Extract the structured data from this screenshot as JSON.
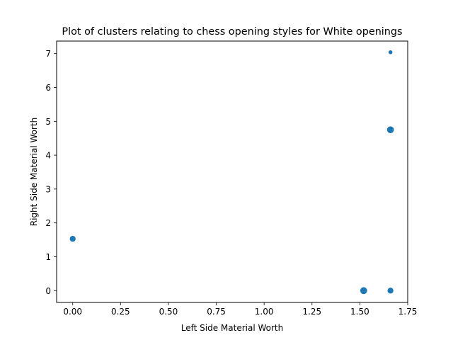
{
  "chart_data": {
    "type": "scatter",
    "title": "Plot of clusters relating to chess opening styles for White openings",
    "xlabel": "Left Side Material Worth",
    "ylabel": "Right Side Material Worth",
    "xlim": [
      -0.084,
      1.75
    ],
    "ylim": [
      -0.35,
      7.37
    ],
    "grid": false,
    "legend": "none",
    "color": "#1f77b4",
    "xticks": [
      {
        "value": 0.0,
        "label": "0.00"
      },
      {
        "value": 0.25,
        "label": "0.25"
      },
      {
        "value": 0.5,
        "label": "0.50"
      },
      {
        "value": 0.75,
        "label": "0.75"
      },
      {
        "value": 1.0,
        "label": "1.00"
      },
      {
        "value": 1.25,
        "label": "1.25"
      },
      {
        "value": 1.5,
        "label": "1.50"
      },
      {
        "value": 1.75,
        "label": "1.75"
      }
    ],
    "yticks": [
      {
        "value": 0,
        "label": "0"
      },
      {
        "value": 1,
        "label": "1"
      },
      {
        "value": 2,
        "label": "2"
      },
      {
        "value": 3,
        "label": "3"
      },
      {
        "value": 4,
        "label": "4"
      },
      {
        "value": 5,
        "label": "5"
      },
      {
        "value": 6,
        "label": "6"
      },
      {
        "value": 7,
        "label": "7"
      }
    ],
    "points": [
      {
        "x": 0.0,
        "y": 1.53,
        "size": 36
      },
      {
        "x": 1.52,
        "y": 0.0,
        "size": 49
      },
      {
        "x": 1.66,
        "y": 0.0,
        "size": 36
      },
      {
        "x": 1.66,
        "y": 4.75,
        "size": 49
      },
      {
        "x": 1.66,
        "y": 7.04,
        "size": 16
      }
    ]
  }
}
